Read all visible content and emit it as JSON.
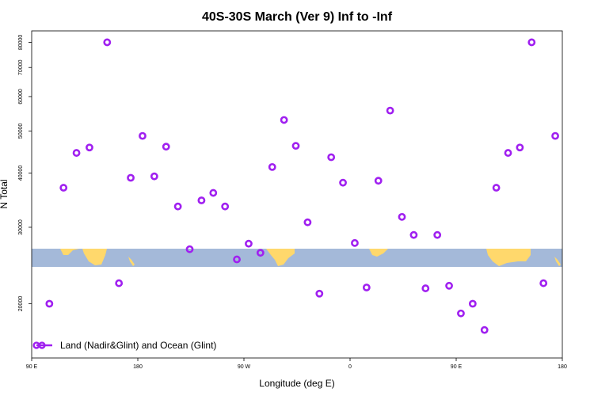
{
  "chart_data": {
    "type": "scatter",
    "title": "40S-30S March (Ver 9)   Inf to -Inf",
    "xlabel": "Longitude (deg E)",
    "ylabel": "N Total",
    "x_ticks": [
      {
        "value": 90,
        "label": "90 E"
      },
      {
        "value": 180,
        "label": "180"
      },
      {
        "value": 270,
        "label": "90 W"
      },
      {
        "value": 360,
        "label": "0"
      },
      {
        "value": 450,
        "label": "90 E"
      },
      {
        "value": 540,
        "label": "180"
      }
    ],
    "y_ticks": [
      {
        "value": 20000,
        "label": "20000"
      },
      {
        "value": 30000,
        "label": "30000"
      },
      {
        "value": 40000,
        "label": "40000"
      },
      {
        "value": 50000,
        "label": "50000"
      },
      {
        "value": 60000,
        "label": "60000"
      },
      {
        "value": 70000,
        "label": "70000"
      },
      {
        "value": 80000,
        "label": "80000"
      }
    ],
    "xlim": [
      90,
      540
    ],
    "ylim": [
      15000,
      85000
    ],
    "y_scale": "log",
    "grid": false,
    "legend": {
      "position": "bottom-left",
      "entries": [
        "Land (Nadir&Glint) and Ocean (Glint)"
      ]
    },
    "colors": {
      "series": "#a020f0",
      "ocean": "#a4b9d9",
      "land": "#ffd86c"
    },
    "background": "world map strip (ocean and land) across the 40S-30S latitude band",
    "series": [
      {
        "x": [
          105,
          117,
          128,
          139,
          154,
          164,
          174,
          184,
          194,
          204,
          214,
          224,
          234,
          244,
          254,
          264,
          274,
          284,
          294,
          304,
          314,
          324,
          334,
          344,
          354,
          364,
          374,
          384,
          394,
          404,
          414,
          424,
          434,
          444,
          454,
          464,
          474,
          484,
          494,
          504,
          514,
          524,
          534
        ],
        "y": [
          20000,
          37000,
          44500,
          45800,
          80000,
          22300,
          39000,
          48700,
          39300,
          46000,
          33500,
          26700,
          34600,
          36000,
          33500,
          25300,
          27500,
          26200,
          41300,
          53000,
          46200,
          30800,
          21100,
          43500,
          38000,
          27600,
          21800,
          38400,
          55700,
          31700,
          28800,
          21700,
          28800,
          22000,
          19000,
          20000,
          17400,
          37000,
          44500,
          45800,
          80000,
          22300,
          48700
        ]
      }
    ]
  }
}
